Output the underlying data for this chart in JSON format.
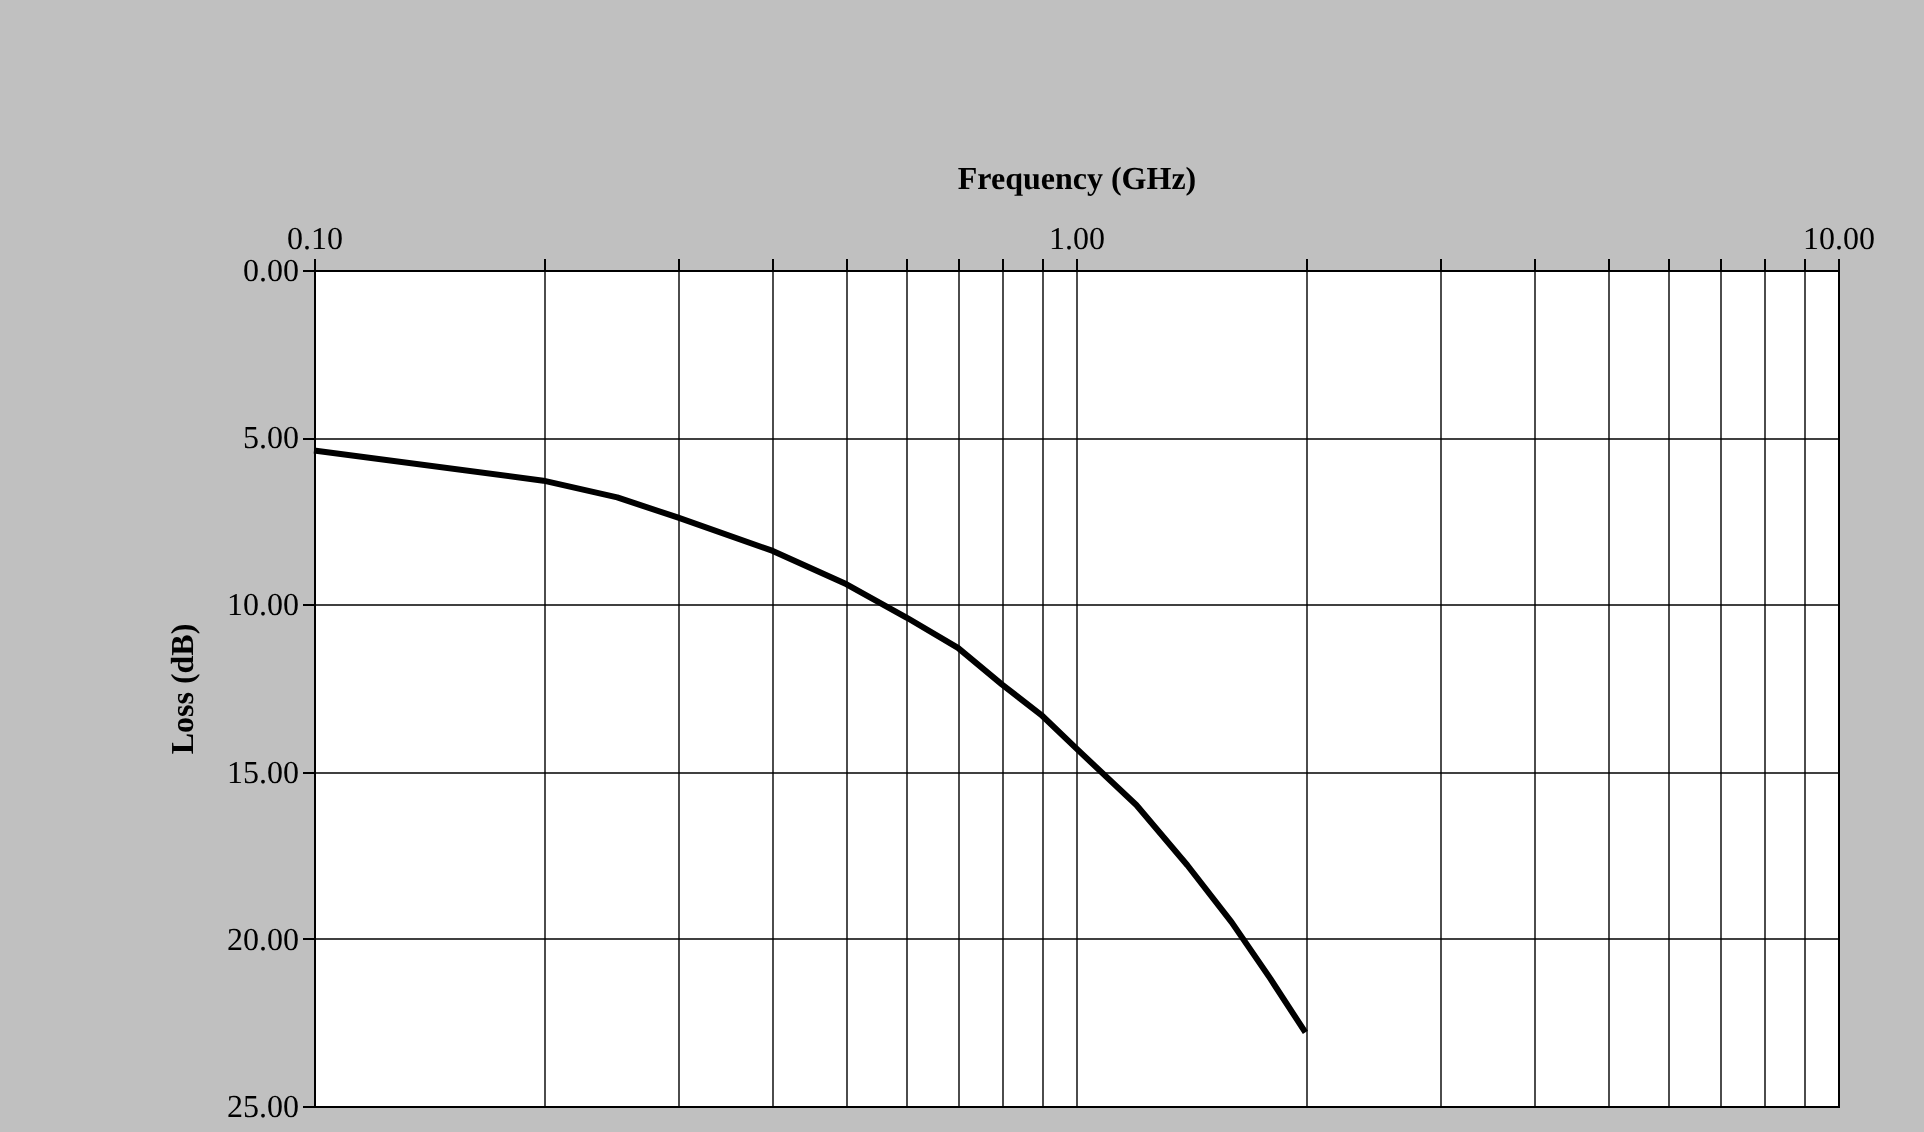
{
  "chart_data": {
    "type": "line",
    "xlabel": "Frequency (GHz)",
    "ylabel": "Loss (dB)",
    "log": "x",
    "grid": true,
    "marker": "none",
    "line_style": "solid",
    "xlim": [
      0.1,
      10
    ],
    "ylim": [
      25,
      0
    ],
    "xticks": [
      {
        "value": 0.1,
        "label": "0.10"
      },
      {
        "value": 0.2,
        "label": null
      },
      {
        "value": 0.3,
        "label": null
      },
      {
        "value": 0.4,
        "label": null
      },
      {
        "value": 0.5,
        "label": null
      },
      {
        "value": 0.6,
        "label": null
      },
      {
        "value": 0.7,
        "label": null
      },
      {
        "value": 0.8,
        "label": null
      },
      {
        "value": 0.9,
        "label": null
      },
      {
        "value": 1,
        "label": "1.00"
      },
      {
        "value": 2,
        "label": null
      },
      {
        "value": 3,
        "label": null
      },
      {
        "value": 4,
        "label": null
      },
      {
        "value": 5,
        "label": null
      },
      {
        "value": 6,
        "label": null
      },
      {
        "value": 7,
        "label": null
      },
      {
        "value": 8,
        "label": null
      },
      {
        "value": 9,
        "label": null
      },
      {
        "value": 10,
        "label": "10.00"
      }
    ],
    "yticks": [
      {
        "value": 0,
        "label": "0.00"
      },
      {
        "value": 5,
        "label": "5.00"
      },
      {
        "value": 10,
        "label": "10.00"
      },
      {
        "value": 15,
        "label": "15.00"
      },
      {
        "value": 20,
        "label": "20.00"
      },
      {
        "value": 25,
        "label": "25.00"
      }
    ],
    "x": [
      0.1,
      0.2,
      0.25,
      0.3,
      0.4,
      0.5,
      0.6,
      0.7,
      0.8,
      0.9,
      1.0,
      1.2,
      1.4,
      1.6,
      1.8,
      2.0
    ],
    "series": [
      {
        "color": "#000000",
        "values": [
          5.4,
          6.3,
          6.8,
          7.4,
          8.4,
          9.4,
          10.4,
          11.3,
          12.4,
          13.3,
          14.3,
          16.0,
          17.8,
          19.5,
          21.2,
          22.8
        ]
      }
    ]
  }
}
